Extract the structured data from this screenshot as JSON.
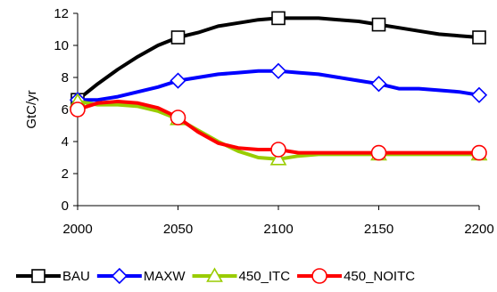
{
  "chart_data": {
    "type": "line",
    "title": "",
    "xlabel": "",
    "ylabel": "GtC/yr",
    "xlim": [
      2000,
      2200
    ],
    "ylim": [
      0,
      12
    ],
    "xticks": [
      2000,
      2050,
      2100,
      2150,
      2200
    ],
    "yticks": [
      0,
      2,
      4,
      6,
      8,
      10,
      12
    ],
    "grid": false,
    "legend_position": "bottom",
    "series": [
      {
        "name": "BAU",
        "color": "#000000",
        "marker": "square",
        "x": [
          2000,
          2010,
          2020,
          2030,
          2040,
          2050,
          2060,
          2070,
          2080,
          2090,
          2100,
          2110,
          2120,
          2130,
          2140,
          2150,
          2160,
          2170,
          2180,
          2190,
          2200
        ],
        "y": [
          6.6,
          7.6,
          8.5,
          9.3,
          10.0,
          10.5,
          10.8,
          11.2,
          11.4,
          11.6,
          11.7,
          11.7,
          11.7,
          11.6,
          11.5,
          11.3,
          11.1,
          10.9,
          10.7,
          10.6,
          10.5
        ],
        "marker_x": [
          2000,
          2050,
          2100,
          2150,
          2200
        ],
        "marker_y": [
          6.6,
          10.5,
          11.7,
          11.3,
          10.5
        ]
      },
      {
        "name": "MAXW",
        "color": "#0000ff",
        "marker": "diamond",
        "x": [
          2000,
          2010,
          2020,
          2030,
          2040,
          2050,
          2060,
          2070,
          2080,
          2090,
          2100,
          2110,
          2120,
          2130,
          2140,
          2150,
          2160,
          2170,
          2180,
          2190,
          2200
        ],
        "y": [
          6.6,
          6.6,
          6.8,
          7.1,
          7.4,
          7.8,
          8.0,
          8.2,
          8.3,
          8.4,
          8.4,
          8.3,
          8.2,
          8.0,
          7.8,
          7.6,
          7.3,
          7.3,
          7.2,
          7.1,
          6.9
        ],
        "marker_x": [
          2000,
          2050,
          2100,
          2150,
          2200
        ],
        "marker_y": [
          6.6,
          7.8,
          8.4,
          7.6,
          6.9
        ]
      },
      {
        "name": "450_ITC",
        "color": "#99cc00",
        "marker": "triangle",
        "x": [
          2000,
          2010,
          2020,
          2030,
          2040,
          2050,
          2060,
          2070,
          2080,
          2090,
          2100,
          2110,
          2120,
          2130,
          2140,
          2150,
          2160,
          2170,
          2180,
          2190,
          2200
        ],
        "y": [
          6.5,
          6.3,
          6.3,
          6.2,
          5.9,
          5.4,
          4.7,
          4.0,
          3.4,
          3.0,
          2.9,
          3.1,
          3.2,
          3.2,
          3.2,
          3.2,
          3.2,
          3.2,
          3.2,
          3.2,
          3.2
        ],
        "marker_x": [
          2000,
          2050,
          2100,
          2150,
          2200
        ],
        "marker_y": [
          6.5,
          5.4,
          2.9,
          3.2,
          3.2
        ]
      },
      {
        "name": "450_NOITC",
        "color": "#ff0000",
        "marker": "circle",
        "x": [
          2000,
          2010,
          2020,
          2030,
          2040,
          2050,
          2060,
          2070,
          2080,
          2090,
          2100,
          2110,
          2120,
          2130,
          2140,
          2150,
          2160,
          2170,
          2180,
          2190,
          2200
        ],
        "y": [
          6.0,
          6.4,
          6.5,
          6.4,
          6.1,
          5.5,
          4.6,
          3.9,
          3.6,
          3.5,
          3.5,
          3.3,
          3.3,
          3.3,
          3.3,
          3.3,
          3.3,
          3.3,
          3.3,
          3.3,
          3.3
        ],
        "marker_x": [
          2000,
          2050,
          2100,
          2150,
          2200
        ],
        "marker_y": [
          6.0,
          5.5,
          3.5,
          3.3,
          3.3
        ]
      }
    ]
  }
}
